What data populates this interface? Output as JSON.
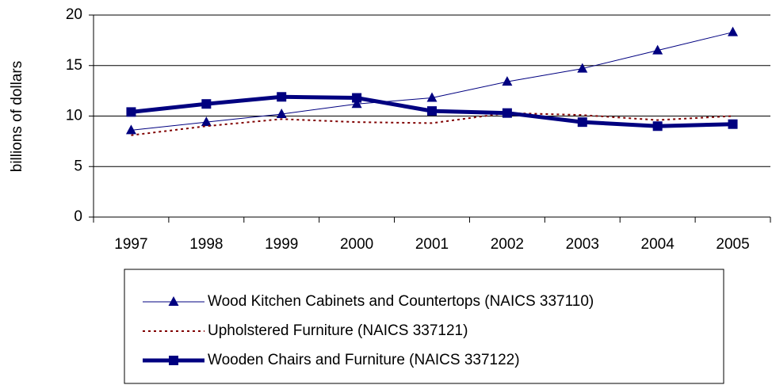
{
  "chart_data": {
    "type": "line",
    "y_label": "billions of dollars",
    "categories": [
      "1997",
      "1998",
      "1999",
      "2000",
      "2001",
      "2002",
      "2003",
      "2004",
      "2005"
    ],
    "series": [
      {
        "name": "Wood Kitchen Cabinets and Countertops (NAICS 337110)",
        "color": "#000080",
        "marker": "triangle",
        "style": "thin",
        "values": [
          8.6,
          9.4,
          10.2,
          11.2,
          11.8,
          13.4,
          14.7,
          16.5,
          18.3
        ]
      },
      {
        "name": "Upholstered Furniture (NAICS 337121)",
        "color": "#800000",
        "marker": "none",
        "style": "dotted",
        "values": [
          8.1,
          9.0,
          9.7,
          9.4,
          9.3,
          10.3,
          10.1,
          9.6,
          10.0
        ]
      },
      {
        "name": "Wooden Chairs and Furniture (NAICS 337122)",
        "color": "#000080",
        "marker": "square",
        "style": "thick",
        "values": [
          10.4,
          11.2,
          11.9,
          11.8,
          10.5,
          10.3,
          9.4,
          9.0,
          9.2
        ]
      }
    ],
    "ylim": [
      0,
      20
    ],
    "yticks": [
      0,
      5,
      10,
      15,
      20
    ],
    "grid": true,
    "legend": "bottom"
  }
}
